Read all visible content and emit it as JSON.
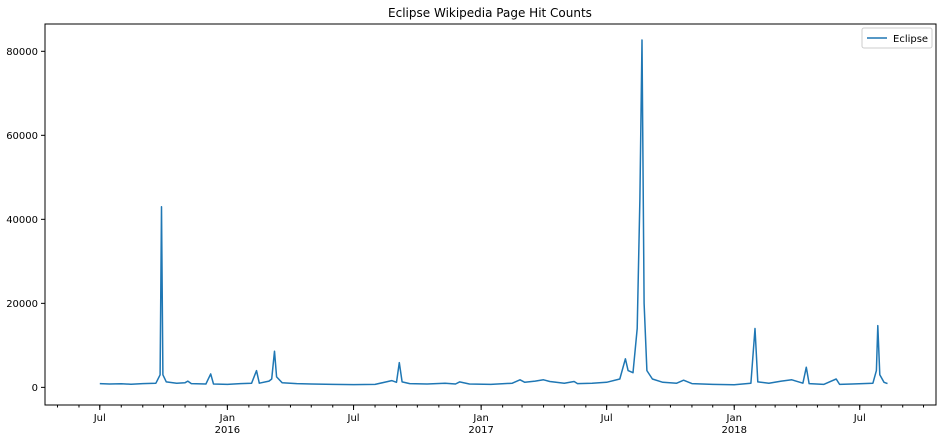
{
  "chart_data": {
    "type": "line",
    "title": "Eclipse Wikipedia Page Hit Counts",
    "xlabel": "",
    "ylabel": "",
    "x_range": [
      "2015-04-13",
      "2018-10-19"
    ],
    "ylim": [
      -4200,
      86500
    ],
    "yticks": [
      0,
      20000,
      40000,
      60000,
      80000
    ],
    "ytick_labels": [
      "0",
      "20000",
      "40000",
      "60000",
      "80000"
    ],
    "xticks": [
      {
        "date": "2015-07-01",
        "label": "Jul",
        "sublabel": ""
      },
      {
        "date": "2016-01-01",
        "label": "Jan",
        "sublabel": "2016"
      },
      {
        "date": "2016-07-01",
        "label": "Jul",
        "sublabel": ""
      },
      {
        "date": "2017-01-01",
        "label": "Jan",
        "sublabel": "2017"
      },
      {
        "date": "2017-07-01",
        "label": "Jul",
        "sublabel": ""
      },
      {
        "date": "2018-01-01",
        "label": "Jan",
        "sublabel": "2018"
      },
      {
        "date": "2018-07-01",
        "label": "Jul",
        "sublabel": ""
      }
    ],
    "grid": false,
    "legend": {
      "placement": "top-right",
      "entries": [
        "Eclipse"
      ]
    },
    "series": [
      {
        "name": "Eclipse",
        "color": "#1f77b4",
        "points": [
          [
            "2015-07-01",
            900
          ],
          [
            "2015-07-15",
            800
          ],
          [
            "2015-08-01",
            850
          ],
          [
            "2015-08-15",
            750
          ],
          [
            "2015-09-01",
            900
          ],
          [
            "2015-09-20",
            1000
          ],
          [
            "2015-09-26",
            3000
          ],
          [
            "2015-09-28",
            43000
          ],
          [
            "2015-09-30",
            3000
          ],
          [
            "2015-10-05",
            1300
          ],
          [
            "2015-10-20",
            1000
          ],
          [
            "2015-11-01",
            1100
          ],
          [
            "2015-11-05",
            1500
          ],
          [
            "2015-11-10",
            900
          ],
          [
            "2015-12-01",
            800
          ],
          [
            "2015-12-08",
            3200
          ],
          [
            "2015-12-12",
            800
          ],
          [
            "2016-01-01",
            700
          ],
          [
            "2016-01-20",
            900
          ],
          [
            "2016-02-05",
            1000
          ],
          [
            "2016-02-12",
            4000
          ],
          [
            "2016-02-16",
            1000
          ],
          [
            "2016-03-01",
            1500
          ],
          [
            "2016-03-05",
            2000
          ],
          [
            "2016-03-09",
            8600
          ],
          [
            "2016-03-12",
            2500
          ],
          [
            "2016-03-20",
            1100
          ],
          [
            "2016-04-10",
            900
          ],
          [
            "2016-05-01",
            800
          ],
          [
            "2016-06-01",
            700
          ],
          [
            "2016-07-01",
            650
          ],
          [
            "2016-08-01",
            700
          ],
          [
            "2016-08-25",
            1600
          ],
          [
            "2016-09-01",
            1200
          ],
          [
            "2016-09-05",
            5900
          ],
          [
            "2016-09-09",
            1300
          ],
          [
            "2016-09-20",
            900
          ],
          [
            "2016-10-15",
            800
          ],
          [
            "2016-11-10",
            1000
          ],
          [
            "2016-11-25",
            800
          ],
          [
            "2016-12-01",
            1300
          ],
          [
            "2016-12-15",
            800
          ],
          [
            "2017-01-15",
            700
          ],
          [
            "2017-02-15",
            1000
          ],
          [
            "2017-02-26",
            1800
          ],
          [
            "2017-03-05",
            1200
          ],
          [
            "2017-03-20",
            1500
          ],
          [
            "2017-04-01",
            1800
          ],
          [
            "2017-04-10",
            1400
          ],
          [
            "2017-05-01",
            1000
          ],
          [
            "2017-05-15",
            1400
          ],
          [
            "2017-05-20",
            900
          ],
          [
            "2017-06-10",
            1000
          ],
          [
            "2017-07-01",
            1200
          ],
          [
            "2017-07-20",
            2000
          ],
          [
            "2017-07-28",
            6800
          ],
          [
            "2017-08-01",
            4000
          ],
          [
            "2017-08-08",
            3500
          ],
          [
            "2017-08-14",
            14000
          ],
          [
            "2017-08-18",
            45000
          ],
          [
            "2017-08-21",
            82700
          ],
          [
            "2017-08-24",
            20000
          ],
          [
            "2017-08-28",
            4000
          ],
          [
            "2017-09-05",
            2000
          ],
          [
            "2017-09-20",
            1200
          ],
          [
            "2017-10-10",
            1000
          ],
          [
            "2017-10-20",
            1700
          ],
          [
            "2017-11-01",
            900
          ],
          [
            "2017-12-01",
            700
          ],
          [
            "2018-01-01",
            600
          ],
          [
            "2018-01-25",
            1000
          ],
          [
            "2018-01-31",
            14000
          ],
          [
            "2018-02-04",
            1300
          ],
          [
            "2018-02-20",
            1000
          ],
          [
            "2018-03-10",
            1500
          ],
          [
            "2018-03-25",
            1800
          ],
          [
            "2018-04-10",
            1000
          ],
          [
            "2018-04-15",
            4800
          ],
          [
            "2018-04-19",
            900
          ],
          [
            "2018-05-10",
            700
          ],
          [
            "2018-05-28",
            2000
          ],
          [
            "2018-06-02",
            700
          ],
          [
            "2018-06-20",
            800
          ],
          [
            "2018-07-20",
            1000
          ],
          [
            "2018-07-25",
            4000
          ],
          [
            "2018-07-27",
            14700
          ],
          [
            "2018-07-30",
            3000
          ],
          [
            "2018-08-05",
            1200
          ],
          [
            "2018-08-10",
            900
          ]
        ]
      }
    ]
  }
}
